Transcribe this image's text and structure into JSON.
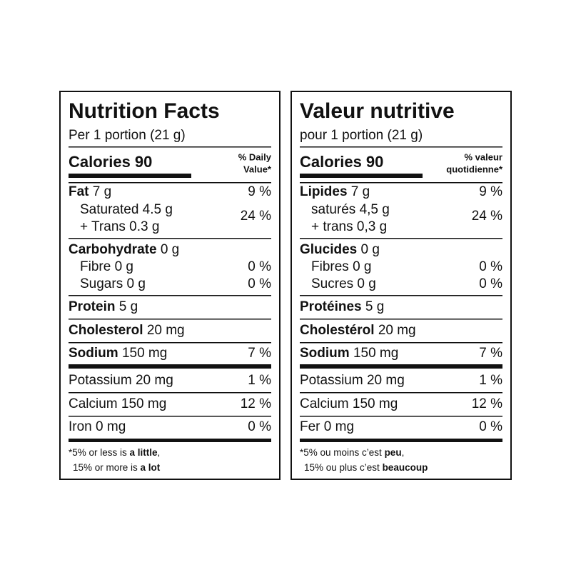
{
  "panels": [
    {
      "title": "Nutrition Facts",
      "serving": "Per 1 portion (21 g)",
      "calories": "Calories 90",
      "dv_header": [
        "% Daily",
        "Value*"
      ],
      "rows": [
        {
          "name": "Fat",
          "amount": "7 g",
          "dv": "9 %"
        },
        {
          "name": "Saturated 4.5 g",
          "dv": "24 %"
        },
        {
          "name": "+ Trans 0.3 g"
        },
        {
          "name": "Carbohydrate",
          "amount": "0 g"
        },
        {
          "name": "Fibre 0 g",
          "dv": "0 %"
        },
        {
          "name": "Sugars 0 g",
          "dv": "0 %"
        },
        {
          "name": "Protein",
          "amount": "5 g"
        },
        {
          "name": "Cholesterol",
          "amount": "20 mg"
        },
        {
          "name": "Sodium",
          "amount": "150 mg",
          "dv": "7 %"
        },
        {
          "name": "Potassium 20 mg",
          "dv": "1 %"
        },
        {
          "name": "Calcium 150 mg",
          "dv": "12 %"
        },
        {
          "name": "Iron 0 mg",
          "dv": "0 %"
        }
      ],
      "footnote": [
        [
          "*5% or less is ",
          "a little",
          ","
        ],
        [
          "15% or more is ",
          "a lot"
        ]
      ]
    },
    {
      "title": "Valeur nutritive",
      "serving": "pour 1 portion (21 g)",
      "calories": "Calories 90",
      "dv_header": [
        "% valeur",
        "quotidienne*"
      ],
      "rows": [
        {
          "name": "Lipides",
          "amount": "7 g",
          "dv": "9 %"
        },
        {
          "name": "saturés 4,5 g",
          "dv": "24 %"
        },
        {
          "name": "+ trans 0,3 g"
        },
        {
          "name": "Glucides",
          "amount": "0 g"
        },
        {
          "name": "Fibres 0 g",
          "dv": "0 %"
        },
        {
          "name": "Sucres 0 g",
          "dv": "0 %"
        },
        {
          "name": "Protéines",
          "amount": "5 g"
        },
        {
          "name": "Cholestérol",
          "amount": "20 mg"
        },
        {
          "name": "Sodium",
          "amount": "150 mg",
          "dv": "7 %"
        },
        {
          "name": "Potassium 20 mg",
          "dv": "1 %"
        },
        {
          "name": "Calcium 150 mg",
          "dv": "12 %"
        },
        {
          "name": "Fer 0 mg",
          "dv": "0 %"
        }
      ],
      "footnote": [
        [
          "*5% ou moins c’est ",
          "peu",
          ","
        ],
        [
          "15% ou plus c’est ",
          "beaucoup"
        ]
      ]
    }
  ]
}
